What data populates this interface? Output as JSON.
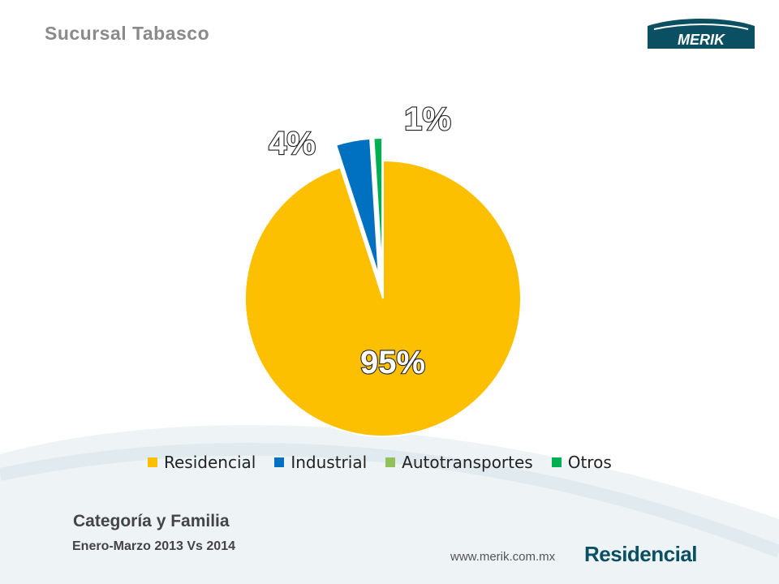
{
  "header": {
    "title": "Sucursal Tabasco"
  },
  "logo": {
    "text": "MERIK",
    "color": "#0a4f62"
  },
  "chart_data": {
    "type": "pie",
    "title": "",
    "categories": [
      "Residencial",
      "Industrial",
      "Autotransportes",
      "Otros"
    ],
    "values": [
      95,
      4,
      0,
      1
    ],
    "labels": [
      "95%",
      "4%",
      "",
      "1%"
    ],
    "colors": [
      "#FDC000",
      "#0070C0",
      "#92C05A",
      "#00B050"
    ],
    "exploded": [
      "Industrial",
      "Otros"
    ],
    "legend_placement": "bottom"
  },
  "footer": {
    "title": "Categoría y Familia",
    "subtitle": "Enero-Marzo 2013 Vs 2014",
    "url": "www.merik.com.mx",
    "brand": "Residencial"
  }
}
